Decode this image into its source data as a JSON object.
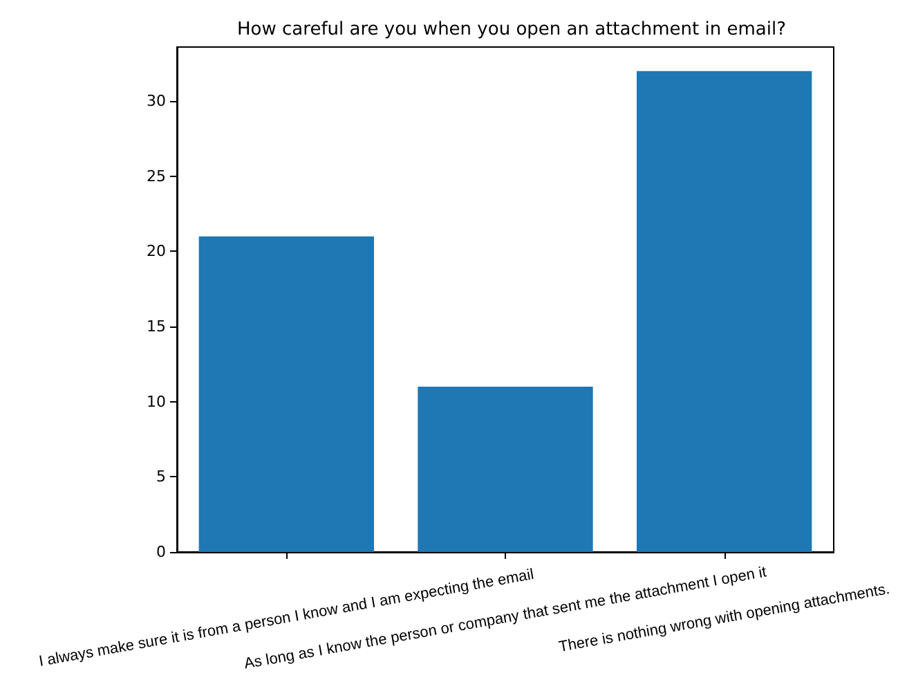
{
  "chart_data": {
    "type": "bar",
    "title": "How careful are you when you open an attachment in email?",
    "categories": [
      "I always make sure it is from a person I know and I am expecting the email",
      "As long as I know the person or company that sent me the attachment I open it",
      "There is nothing wrong with opening attachments."
    ],
    "values": [
      21,
      11,
      32
    ],
    "color": "#1f77b4",
    "ylim": [
      0,
      33.6
    ],
    "yticks": [
      0,
      5,
      10,
      15,
      20,
      25,
      30
    ]
  }
}
